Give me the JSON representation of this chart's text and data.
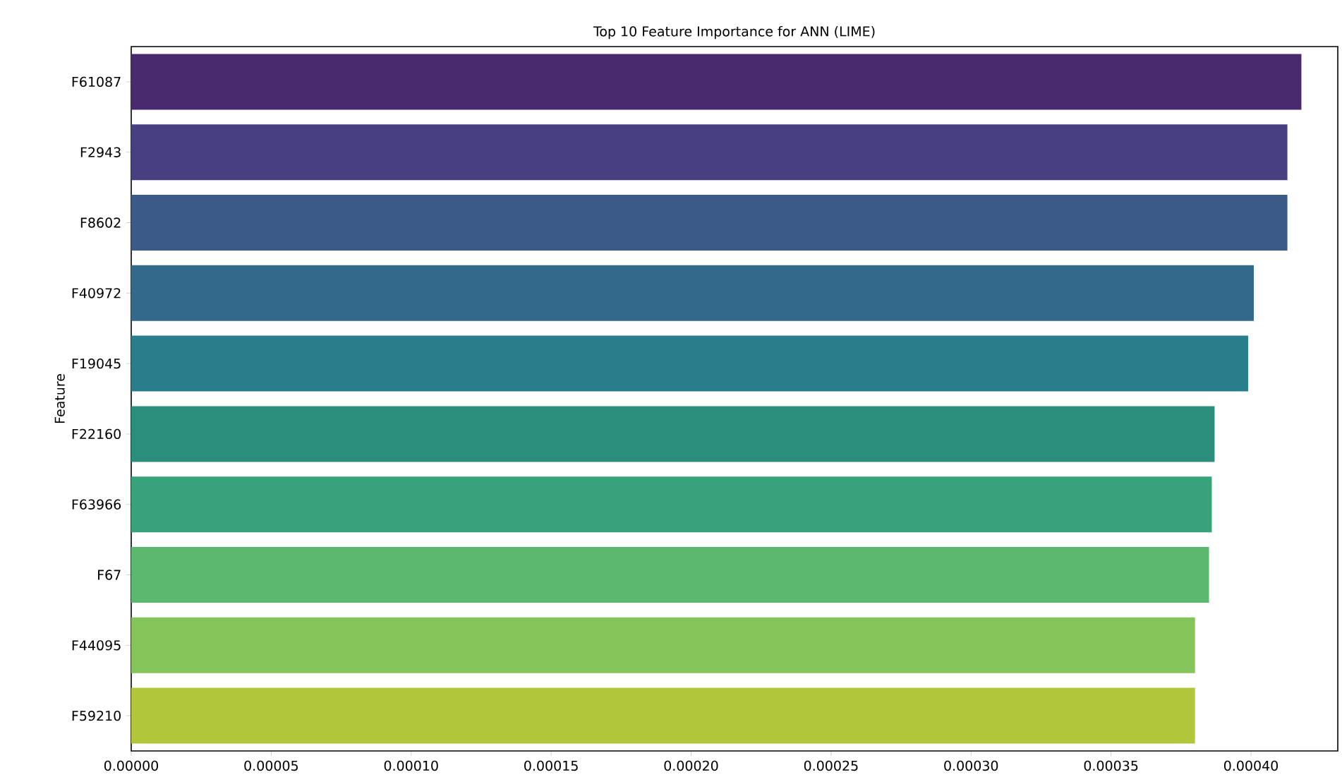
{
  "chart_data": {
    "type": "bar",
    "orientation": "horizontal",
    "title": "Top 10 Feature Importance for ANN (LIME)",
    "ylabel": "Feature",
    "categories": [
      "F61087",
      "F2943",
      "F8602",
      "F40972",
      "F19045",
      "F22160",
      "F63966",
      "F67",
      "F44095",
      "F59210"
    ],
    "values": [
      0.000418,
      0.000413,
      0.000413,
      0.000401,
      0.000399,
      0.000387,
      0.000386,
      0.000385,
      0.00038,
      0.00038
    ],
    "colors": [
      "#4a2a6e",
      "#463f80",
      "#3b5a88",
      "#33698a",
      "#2a7d8a",
      "#2b8e7c",
      "#38a27a",
      "#5bb86e",
      "#85c45a",
      "#b3c53a"
    ],
    "xlim": [
      0,
      0.000431
    ],
    "xticks": [
      {
        "value": 0,
        "label": "0.00000"
      },
      {
        "value": 5e-05,
        "label": "0.00005"
      },
      {
        "value": 0.0001,
        "label": "0.00010"
      },
      {
        "value": 0.00015,
        "label": "0.00015"
      },
      {
        "value": 0.0002,
        "label": "0.00020"
      },
      {
        "value": 0.00025,
        "label": "0.00025"
      },
      {
        "value": 0.0003,
        "label": "0.00030"
      },
      {
        "value": 0.00035,
        "label": "0.00035"
      },
      {
        "value": 0.0004,
        "label": "0.00040"
      }
    ],
    "grid": false
  }
}
